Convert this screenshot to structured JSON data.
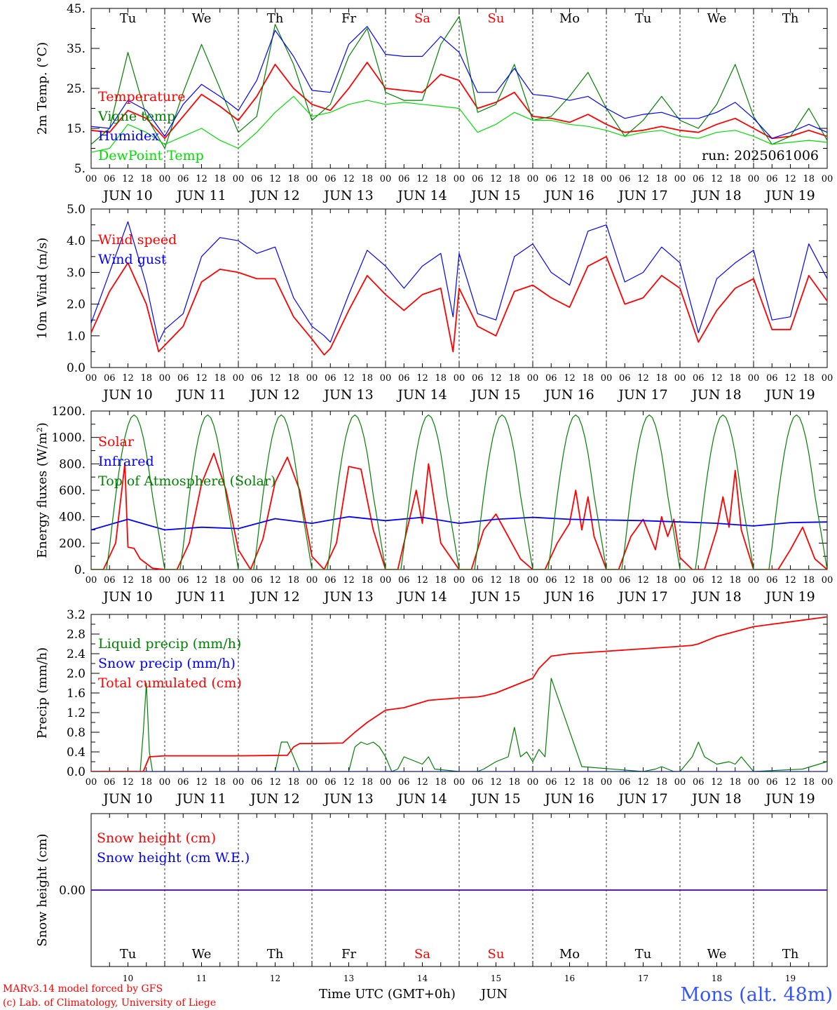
{
  "run_label": "run: 2025061006",
  "footer": {
    "model_line": "MARv3.14 model forced by GFS",
    "credit_line": "(c) Lab. of Climatology, University of Liege",
    "xlabel": "Time UTC (GMT+0h)",
    "month": "JUN",
    "location": "Mons (alt. 48m)"
  },
  "days": {
    "weekdays": [
      "Tu",
      "We",
      "Th",
      "Fr",
      "Sa",
      "Su",
      "Mo",
      "Tu",
      "We",
      "Th"
    ],
    "weekend_flags": [
      false,
      false,
      false,
      false,
      true,
      true,
      false,
      false,
      false,
      false
    ],
    "date_labels": [
      "JUN 10",
      "JUN 11",
      "JUN 12",
      "JUN 13",
      "JUN 14",
      "JUN 15",
      "JUN 16",
      "JUN 17",
      "JUN 18",
      "JUN 19"
    ],
    "day_numbers": [
      "10",
      "11",
      "12",
      "13",
      "14",
      "15",
      "16",
      "17",
      "18",
      "19"
    ],
    "hour_ticks": [
      "00",
      "06",
      "12",
      "18"
    ],
    "end_tick": "00"
  },
  "colors": {
    "red": "#ff0000",
    "green": "#008000",
    "blue": "#0000ff",
    "lightgreen": "#00dd00",
    "axis": "#000000",
    "location": "#3355ff"
  },
  "chart_data": [
    {
      "type": "line",
      "ylabel": "2m Temp. (°C)",
      "ylim": [
        5,
        45
      ],
      "yticks": [
        "5.",
        "15.",
        "25.",
        "35.",
        "45."
      ],
      "x_unit": "hours since JUN 10 00 UTC",
      "show_weekdays_top": true,
      "series": [
        {
          "name": "Temperature",
          "color": "red",
          "x": [
            0,
            6,
            12,
            18,
            24,
            30,
            36,
            42,
            48,
            54,
            60,
            66,
            72,
            78,
            84,
            90,
            96,
            102,
            108,
            114,
            120,
            126,
            132,
            138,
            144,
            150,
            156,
            162,
            168,
            174,
            180,
            186,
            192,
            198,
            204,
            210,
            216,
            222,
            228,
            234,
            240
          ],
          "y": [
            14.5,
            14,
            19.5,
            17.5,
            12.5,
            18,
            23.5,
            20.5,
            17,
            23,
            31,
            25,
            21,
            19.5,
            25,
            31.5,
            25,
            24.5,
            24,
            28.5,
            27,
            20,
            21.5,
            24,
            18,
            17.5,
            16.5,
            18.5,
            16,
            14,
            14.5,
            15.5,
            14.5,
            14,
            16,
            17.5,
            15,
            12.5,
            13,
            14.5,
            13
          ]
        },
        {
          "name": "Vigne temp",
          "color": "green",
          "x": [
            0,
            6,
            12,
            18,
            24,
            30,
            36,
            42,
            48,
            54,
            60,
            66,
            72,
            78,
            84,
            90,
            96,
            102,
            108,
            114,
            120,
            126,
            132,
            138,
            144,
            150,
            156,
            162,
            168,
            174,
            180,
            186,
            192,
            198,
            204,
            210,
            216,
            222,
            228,
            234,
            240
          ],
          "y": [
            11,
            15,
            34,
            18,
            10,
            24,
            36,
            25,
            14,
            18,
            41,
            31,
            17,
            21,
            33,
            40,
            24,
            22,
            22,
            36,
            43,
            19,
            21,
            31,
            17,
            18,
            23,
            29,
            20,
            13,
            17,
            23,
            17,
            15,
            21,
            31,
            18,
            11,
            13,
            20,
            12
          ]
        },
        {
          "name": "Humidex",
          "color": "blue",
          "x": [
            0,
            6,
            12,
            18,
            24,
            30,
            36,
            42,
            48,
            54,
            60,
            66,
            72,
            78,
            84,
            90,
            96,
            102,
            108,
            114,
            120,
            126,
            132,
            138,
            144,
            150,
            156,
            162,
            168,
            174,
            180,
            186,
            192,
            198,
            204,
            210,
            216,
            222,
            228,
            234,
            240
          ],
          "y": [
            15.5,
            15,
            22,
            19.5,
            13,
            21,
            26,
            23,
            19.5,
            27,
            39.5,
            33,
            24.5,
            24,
            36,
            40.5,
            33.5,
            33,
            33,
            38,
            34,
            24,
            24,
            30,
            23.5,
            23,
            22,
            23,
            20,
            17.5,
            18.5,
            19,
            17.5,
            17.5,
            19,
            21.5,
            17.5,
            12.5,
            14,
            16,
            14
          ]
        },
        {
          "name": "DewPoint Temp",
          "color": "lightgreen",
          "x": [
            0,
            6,
            12,
            18,
            24,
            30,
            36,
            42,
            48,
            54,
            60,
            66,
            72,
            78,
            84,
            90,
            96,
            102,
            108,
            114,
            120,
            126,
            132,
            138,
            144,
            150,
            156,
            162,
            168,
            174,
            180,
            186,
            192,
            198,
            204,
            210,
            216,
            222,
            228,
            234,
            240
          ],
          "y": [
            9,
            10,
            16,
            14,
            11,
            13,
            15,
            12,
            10,
            14,
            19,
            23,
            18,
            19,
            21,
            22,
            21,
            21.5,
            21,
            20.5,
            20,
            14,
            16,
            19,
            17,
            17,
            16,
            15.5,
            14.5,
            13,
            14,
            14.5,
            13,
            12.5,
            14,
            14.5,
            13,
            11,
            11.5,
            12,
            11.5
          ]
        }
      ]
    },
    {
      "type": "line",
      "ylabel": "10m Wind (m/s)",
      "ylim": [
        0,
        5
      ],
      "yticks": [
        "0.0",
        "1.0",
        "2.0",
        "3.0",
        "4.0",
        "5.0"
      ],
      "x_unit": "hours since JUN 10 00 UTC",
      "series": [
        {
          "name": "Wind speed",
          "color": "red",
          "x": [
            0,
            6,
            12,
            18,
            22,
            24,
            30,
            36,
            42,
            48,
            54,
            60,
            66,
            72,
            76,
            78,
            84,
            90,
            96,
            102,
            108,
            114,
            118,
            120,
            126,
            132,
            138,
            144,
            150,
            156,
            162,
            168,
            174,
            180,
            186,
            192,
            198,
            204,
            210,
            216,
            222,
            228,
            234,
            240
          ],
          "y": [
            1.1,
            2.4,
            3.3,
            2.0,
            0.5,
            0.7,
            1.3,
            2.7,
            3.1,
            3.0,
            2.8,
            2.8,
            1.6,
            0.9,
            0.4,
            0.6,
            1.8,
            2.9,
            2.3,
            1.8,
            2.3,
            2.5,
            0.5,
            2.5,
            1.3,
            1.0,
            2.4,
            2.6,
            2.2,
            1.9,
            3.2,
            3.5,
            2.0,
            2.2,
            2.9,
            2.5,
            0.8,
            1.8,
            2.5,
            2.8,
            1.2,
            1.2,
            2.9,
            2.1
          ]
        },
        {
          "name": "Wind gust",
          "color": "blue",
          "x": [
            0,
            6,
            12,
            18,
            22,
            24,
            30,
            36,
            42,
            48,
            54,
            60,
            66,
            72,
            76,
            78,
            84,
            90,
            96,
            102,
            108,
            114,
            118,
            120,
            126,
            132,
            138,
            144,
            150,
            156,
            162,
            168,
            174,
            180,
            186,
            192,
            198,
            204,
            210,
            216,
            222,
            228,
            234,
            240
          ],
          "y": [
            1.4,
            3.0,
            4.6,
            2.6,
            0.8,
            1.2,
            1.7,
            3.5,
            4.1,
            4.0,
            3.6,
            3.8,
            2.2,
            1.3,
            1.0,
            0.8,
            2.3,
            3.7,
            3.2,
            2.5,
            3.2,
            3.6,
            1.6,
            3.6,
            1.7,
            1.5,
            3.5,
            3.9,
            3.0,
            2.6,
            4.3,
            4.5,
            2.7,
            3.0,
            3.8,
            3.3,
            1.1,
            2.8,
            3.3,
            3.7,
            1.5,
            1.6,
            3.9,
            2.8
          ]
        }
      ]
    },
    {
      "type": "line",
      "ylabel": "Energy fluxes (W/m²)",
      "ylim": [
        0,
        1200
      ],
      "yticks": [
        "0.",
        "200.",
        "400.",
        "600.",
        "800.",
        "1000.",
        "1200."
      ],
      "x_unit": "hours since JUN 10 00 UTC",
      "series": [
        {
          "name": "Solar",
          "color": "red",
          "x": [
            0,
            4,
            8,
            11,
            12,
            14,
            16,
            20,
            24,
            28,
            32,
            36,
            40,
            44,
            48,
            52,
            56,
            60,
            64,
            68,
            72,
            76,
            80,
            84,
            88,
            92,
            96,
            100,
            104,
            106,
            108,
            110,
            112,
            114,
            120,
            124,
            128,
            132,
            136,
            140,
            144,
            148,
            152,
            156,
            158,
            160,
            162,
            164,
            168,
            172,
            176,
            180,
            184,
            186,
            188,
            190,
            192,
            196,
            200,
            204,
            206,
            208,
            210,
            212,
            216,
            220,
            224,
            228,
            232,
            236,
            240
          ],
          "y": [
            0,
            0,
            200,
            800,
            170,
            160,
            80,
            10,
            0,
            0,
            200,
            650,
            880,
            600,
            150,
            0,
            230,
            660,
            850,
            600,
            100,
            0,
            200,
            780,
            760,
            300,
            0,
            0,
            400,
            600,
            350,
            800,
            500,
            200,
            0,
            0,
            300,
            420,
            250,
            80,
            0,
            0,
            200,
            350,
            600,
            300,
            550,
            250,
            0,
            0,
            250,
            380,
            150,
            400,
            250,
            380,
            90,
            0,
            0,
            300,
            550,
            320,
            750,
            300,
            0,
            0,
            0,
            150,
            320,
            80,
            0
          ]
        },
        {
          "name": "Infrared",
          "color": "blue",
          "x": [
            0,
            12,
            24,
            36,
            48,
            60,
            72,
            84,
            96,
            108,
            120,
            132,
            144,
            156,
            168,
            180,
            192,
            204,
            216,
            228,
            240
          ],
          "y": [
            300,
            380,
            300,
            320,
            310,
            385,
            350,
            400,
            370,
            395,
            350,
            380,
            395,
            380,
            375,
            370,
            360,
            350,
            330,
            355,
            360
          ]
        },
        {
          "name": "Top of Atmosphere (Solar)",
          "color": "green",
          "x": [
            0,
            4,
            5,
            6,
            7,
            8,
            9,
            10,
            11,
            12,
            13,
            14,
            15,
            16,
            17,
            18,
            19,
            20,
            24
          ],
          "peak": 1170,
          "repeat_every_h": 24,
          "y": [
            0,
            0,
            0,
            170,
            370,
            560,
            730,
            880,
            1000,
            1090,
            1150,
            1170,
            1150,
            1090,
            1000,
            880,
            730,
            560,
            0
          ]
        }
      ]
    },
    {
      "type": "line",
      "ylabel": "Precip (mm/h)",
      "ylim": [
        0,
        3.2
      ],
      "yticks": [
        "0.0",
        "0.4",
        "0.8",
        "1.2",
        "1.6",
        "2.0",
        "2.4",
        "2.8",
        "3.2"
      ],
      "x_unit": "hours since JUN 10 00 UTC",
      "series": [
        {
          "name": "Liquid precip (mm/h)",
          "color": "green",
          "x": [
            0,
            16,
            17,
            18,
            19,
            20,
            22,
            24,
            60,
            62,
            64,
            66,
            68,
            84,
            86,
            88,
            90,
            92,
            94,
            96,
            98,
            100,
            102,
            104,
            108,
            110,
            112,
            120,
            124,
            126,
            128,
            132,
            136,
            138,
            140,
            142,
            144,
            146,
            148,
            150,
            160,
            180,
            184,
            186,
            188,
            190,
            192,
            196,
            198,
            200,
            204,
            208,
            210,
            212,
            216,
            232,
            240
          ],
          "y": [
            0,
            0,
            0.8,
            1.8,
            0.4,
            0,
            0,
            0,
            0,
            0.6,
            0.6,
            0.3,
            0,
            0,
            0.5,
            0.6,
            0.55,
            0.6,
            0.5,
            0.3,
            0,
            0.05,
            0.3,
            0.25,
            0.15,
            0.3,
            0.05,
            0,
            0,
            0,
            0.05,
            0.2,
            0.3,
            0.9,
            0.3,
            0.4,
            0.2,
            0.45,
            0.3,
            1.9,
            0.1,
            0,
            0.05,
            0.1,
            0.05,
            0,
            0,
            0.3,
            0.6,
            0.3,
            0.15,
            0.2,
            0.15,
            0.3,
            0,
            0.05,
            0.2
          ]
        },
        {
          "name": "Snow precip (mm/h)",
          "color": "blue",
          "x": [
            0,
            240
          ],
          "y": [
            0,
            0
          ]
        },
        {
          "name": "Total cumulated (cm)",
          "color": "red",
          "x": [
            0,
            17,
            19,
            24,
            48,
            64,
            66,
            68,
            72,
            82,
            86,
            90,
            96,
            102,
            110,
            120,
            126,
            128,
            132,
            140,
            144,
            146,
            150,
            156,
            168,
            180,
            192,
            196,
            198,
            204,
            216,
            240
          ],
          "y": [
            0,
            0,
            0.3,
            0.32,
            0.32,
            0.33,
            0.5,
            0.57,
            0.57,
            0.58,
            0.8,
            1.0,
            1.25,
            1.3,
            1.45,
            1.5,
            1.52,
            1.54,
            1.6,
            1.8,
            1.9,
            2.1,
            2.35,
            2.4,
            2.45,
            2.5,
            2.55,
            2.57,
            2.6,
            2.75,
            2.95,
            3.15
          ]
        }
      ]
    },
    {
      "type": "line",
      "ylabel": "Snow height (cm)",
      "ylim": [
        -1,
        1
      ],
      "yticks": [
        "0.00"
      ],
      "x_unit": "hours since JUN 10 00 UTC",
      "show_weekdays_bottom": true,
      "series": [
        {
          "name": "Snow height (cm)",
          "color": "red",
          "x": [
            0,
            240
          ],
          "y": [
            0,
            0
          ]
        },
        {
          "name": "Snow height (cm W.E.)",
          "color": "blue",
          "x": [
            0,
            240
          ],
          "y": [
            0,
            0
          ]
        }
      ]
    }
  ]
}
